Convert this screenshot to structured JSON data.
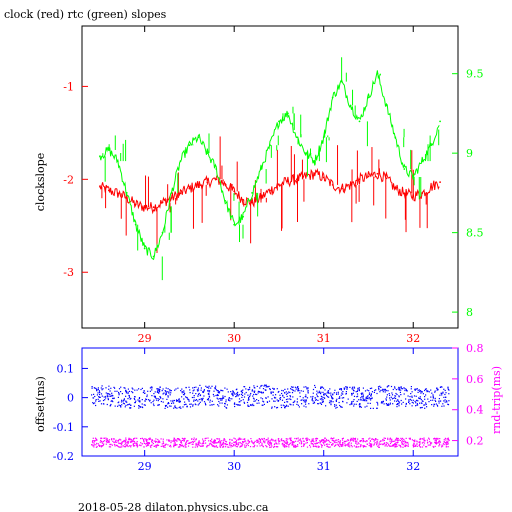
{
  "chart_data": [
    {
      "type": "line",
      "title": "clock (red) rtc (green) slopes",
      "xlabel": "",
      "ylabel_left": "clockslope",
      "ylabel_right": "",
      "xlim": [
        28.3,
        32.5
      ],
      "ylim_left": [
        -3.6,
        -0.35
      ],
      "ylim_right": [
        7.9,
        9.8
      ],
      "x_ticks": [
        29,
        30,
        31,
        32
      ],
      "y_ticks_left": [
        -1,
        -2,
        -3
      ],
      "y_ticks_right": [
        8,
        8.5,
        9,
        9.5
      ],
      "grid": false,
      "series": [
        {
          "axis": "left",
          "color": "#ff0000",
          "x": [
            28.5,
            28.6,
            28.7,
            28.8,
            28.9,
            29.0,
            29.1,
            29.2,
            29.3,
            29.4,
            29.5,
            29.6,
            29.7,
            29.8,
            29.9,
            30.0,
            30.1,
            30.2,
            30.3,
            30.4,
            30.5,
            30.6,
            30.7,
            30.8,
            30.9,
            31.0,
            31.1,
            31.2,
            31.3,
            31.4,
            31.5,
            31.6,
            31.7,
            31.8,
            31.9,
            32.0,
            32.1,
            32.2,
            32.3
          ],
          "values": [
            -2.08,
            -2.12,
            -2.15,
            -2.2,
            -2.27,
            -2.3,
            -2.3,
            -2.25,
            -2.2,
            -2.15,
            -2.1,
            -2.06,
            -2.03,
            -2.0,
            -2.05,
            -2.13,
            -2.22,
            -2.25,
            -2.2,
            -2.12,
            -2.06,
            -2.02,
            -2.0,
            -1.97,
            -1.94,
            -1.98,
            -2.06,
            -2.1,
            -2.06,
            -2.0,
            -1.97,
            -1.94,
            -1.99,
            -2.1,
            -2.15,
            -2.18,
            -2.15,
            -2.08,
            -2.03
          ]
        },
        {
          "axis": "right",
          "color": "#00ff00",
          "x": [
            28.5,
            28.6,
            28.7,
            28.8,
            28.9,
            29.0,
            29.1,
            29.2,
            29.3,
            29.4,
            29.5,
            29.6,
            29.7,
            29.8,
            29.9,
            30.0,
            30.1,
            30.2,
            30.3,
            30.4,
            30.5,
            30.6,
            30.7,
            30.8,
            30.9,
            31.0,
            31.1,
            31.2,
            31.3,
            31.4,
            31.5,
            31.6,
            31.7,
            31.8,
            31.9,
            32.0,
            32.1,
            32.2,
            32.3
          ],
          "values": [
            8.98,
            9.02,
            8.95,
            8.75,
            8.55,
            8.4,
            8.35,
            8.5,
            8.75,
            8.95,
            9.05,
            9.1,
            9.0,
            8.9,
            8.7,
            8.55,
            8.6,
            8.75,
            8.9,
            9.05,
            9.2,
            9.25,
            9.1,
            9.0,
            8.95,
            9.1,
            9.35,
            9.45,
            9.3,
            9.2,
            9.35,
            9.5,
            9.3,
            9.1,
            8.9,
            8.85,
            8.95,
            9.05,
            9.2
          ]
        }
      ]
    },
    {
      "type": "scatter",
      "title": "",
      "xlabel": "",
      "ylabel_left": "offset(ms)",
      "ylabel_right": "rnd-trip(ms)",
      "xlim": [
        28.3,
        32.5
      ],
      "ylim_left": [
        -0.2,
        0.17
      ],
      "ylim_right": [
        0.1,
        0.8
      ],
      "x_ticks": [
        29,
        30,
        31,
        32
      ],
      "y_ticks_left": [
        0.1,
        0,
        -0.1,
        -0.2
      ],
      "y_ticks_right": [
        0.8,
        0.6,
        0.4,
        0.2
      ],
      "grid": false,
      "series": [
        {
          "axis": "left",
          "color": "#0000ff",
          "x": [
            28.5,
            28.7,
            28.9,
            29.1,
            29.3,
            29.5,
            29.7,
            29.9,
            30.1,
            30.3,
            30.5,
            30.7,
            30.9,
            31.1,
            31.3,
            31.5,
            31.7,
            31.9,
            32.1,
            32.3
          ],
          "values": [
            0.01,
            0.005,
            0.0,
            0.01,
            0.0,
            0.005,
            0.01,
            0.0,
            0.005,
            0.01,
            0.0,
            0.005,
            0.01,
            0.0,
            0.005,
            0.0,
            0.01,
            0.005,
            0.0,
            0.005
          ],
          "spread": 0.035
        },
        {
          "axis": "right",
          "color": "#ff00ff",
          "x": [
            28.5,
            28.7,
            28.9,
            29.1,
            29.3,
            29.5,
            29.7,
            29.9,
            30.1,
            30.3,
            30.5,
            30.7,
            30.9,
            31.1,
            31.3,
            31.5,
            31.7,
            31.9,
            32.1,
            32.3
          ],
          "values": [
            0.19,
            0.19,
            0.19,
            0.19,
            0.19,
            0.19,
            0.19,
            0.19,
            0.19,
            0.19,
            0.19,
            0.19,
            0.19,
            0.19,
            0.19,
            0.19,
            0.19,
            0.19,
            0.19,
            0.19
          ],
          "spread": 0.03
        }
      ]
    }
  ],
  "footer": "2018-05-28  dilaton.physics.ubc.ca",
  "colors": {
    "top_left_axis": "#ff0000",
    "top_right_axis": "#00ff00",
    "bottom_left_axis": "#0000ff",
    "bottom_right_axis": "#ff00ff",
    "frame": "#000000"
  }
}
